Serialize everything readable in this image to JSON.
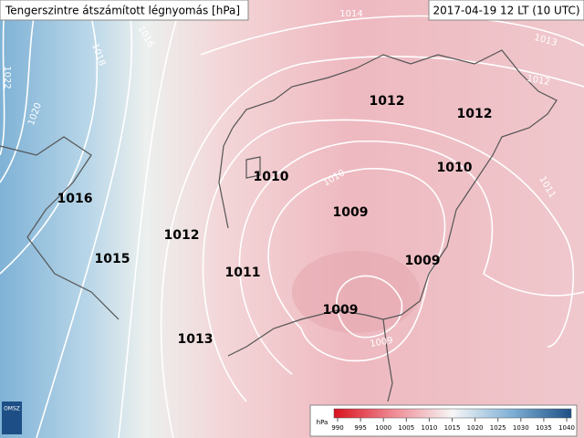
{
  "header": {
    "title": "Tengerszintre átszámított légnyomás [hPa]",
    "timestamp": "2017-04-19 12 LT (10 UTC)"
  },
  "station_labels": [
    1012,
    1012,
    1010,
    1010,
    1009,
    1016,
    1012,
    1015,
    1011,
    1009,
    1009,
    1013
  ],
  "isobar_labels": [
    1022,
    1020,
    1018,
    1016,
    1014,
    1013,
    1012,
    1011,
    1010,
    1009
  ],
  "colorbar": {
    "unit": "hPa",
    "ticks": [
      990,
      995,
      1000,
      1005,
      1010,
      1015,
      1020,
      1025,
      1030,
      1035,
      1040
    ]
  },
  "logo": "OMSZ"
}
